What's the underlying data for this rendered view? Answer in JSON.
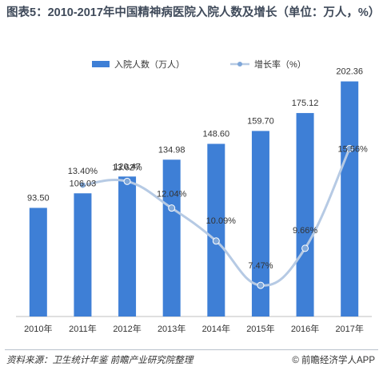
{
  "title": "图表5：2010-2017年中国精神病医院入院人数及增长（单位：万人，%）",
  "source": "资料来源：卫生统计年鉴  前瞻产业研究院整理",
  "brand": "© 前瞻经济学人APP",
  "colors": {
    "bar": "#3e7fd6",
    "line": "#b6cae4",
    "marker": "#7fa7d9",
    "text": "#333333"
  },
  "chart_data": {
    "type": "bar",
    "categories": [
      "2010年",
      "2011年",
      "2012年",
      "2013年",
      "2014年",
      "2015年",
      "2016年",
      "2017年"
    ],
    "series": [
      {
        "name": "入院人数（万人）",
        "type": "bar",
        "axis": "left",
        "values": [
          93.5,
          106.03,
          120.47,
          134.98,
          148.6,
          159.7,
          175.12,
          202.36
        ],
        "labels": [
          "93.50",
          "106.03",
          "120.47",
          "134.98",
          "148.60",
          "159.70",
          "175.12",
          "202.36"
        ]
      },
      {
        "name": "增长率（%）",
        "type": "line",
        "axis": "right",
        "values": [
          null,
          13.4,
          13.62,
          12.04,
          10.09,
          7.47,
          9.66,
          15.56
        ],
        "labels": [
          "",
          "13.40%",
          "13.62%",
          "12.04%",
          "10.09%",
          "7.47%",
          "9.66%",
          "15.56%"
        ]
      }
    ],
    "ylim_left": [
      0,
      210
    ],
    "ylim_right": [
      4,
      16
    ],
    "legend_position": "top-center",
    "grid": false
  }
}
